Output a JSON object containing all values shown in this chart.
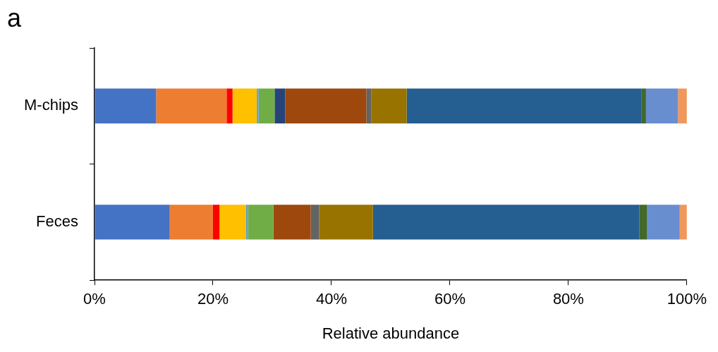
{
  "chart_data": {
    "type": "bar",
    "orientation": "horizontal",
    "stacked": true,
    "xlabel": "Relative abundance",
    "annotations": [
      "a"
    ],
    "categories": [
      "M-chips",
      "Feces"
    ],
    "xlim": [
      0,
      100
    ],
    "xticks": [
      {
        "value": 0,
        "label": "0%"
      },
      {
        "value": 20,
        "label": "20%"
      },
      {
        "value": 40,
        "label": "40%"
      },
      {
        "value": 60,
        "label": "60%"
      },
      {
        "value": 80,
        "label": "80%"
      },
      {
        "value": 100,
        "label": "100%"
      }
    ],
    "grid": false,
    "legend": false,
    "series": [
      {
        "color": "#4472c4",
        "values": [
          10.4,
          12.7
        ]
      },
      {
        "color": "#ed7d31",
        "values": [
          11.9,
          7.3
        ]
      },
      {
        "color": "#ff0000",
        "values": [
          1.0,
          1.1
        ]
      },
      {
        "color": "#ffc000",
        "values": [
          4.1,
          4.5
        ]
      },
      {
        "color": "#5b9bd5",
        "values": [
          0.3,
          0.3
        ]
      },
      {
        "color": "#70ad47",
        "values": [
          2.7,
          4.3
        ]
      },
      {
        "color": "#264478",
        "values": [
          1.8,
          0
        ]
      },
      {
        "color": "#9e480e",
        "values": [
          13.7,
          6.3
        ]
      },
      {
        "color": "#636363",
        "values": [
          0.8,
          1.4
        ]
      },
      {
        "color": "#997300",
        "values": [
          6.0,
          9.1
        ]
      },
      {
        "color": "#255e91",
        "values": [
          39.6,
          45.0
        ]
      },
      {
        "color": "#43682b",
        "values": [
          0.8,
          1.3
        ]
      },
      {
        "color": "#698ed0",
        "values": [
          5.4,
          5.5
        ]
      },
      {
        "color": "#f1975a",
        "values": [
          1.5,
          1.2
        ]
      }
    ]
  }
}
